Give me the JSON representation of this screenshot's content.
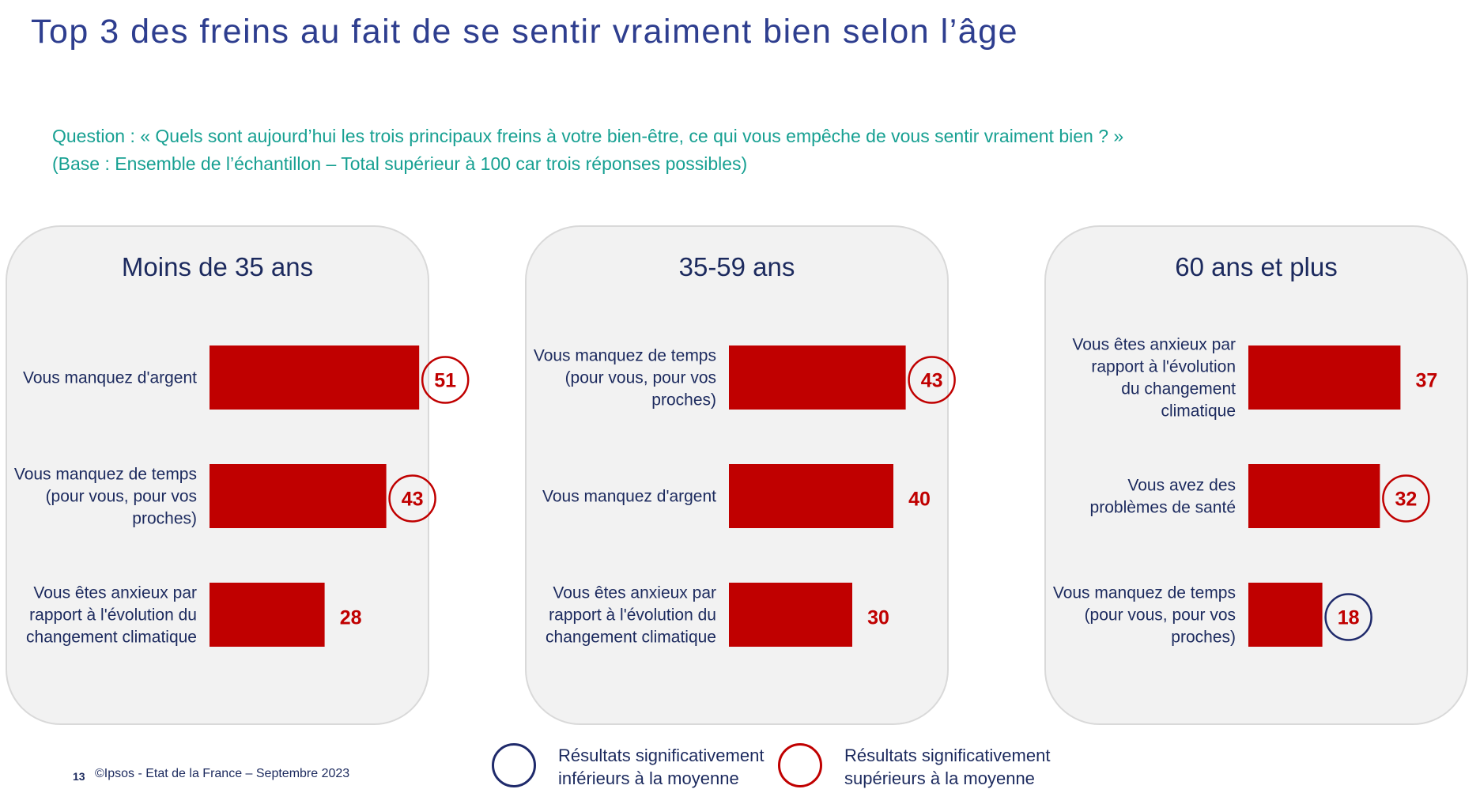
{
  "title": "Top 3 des freins au fait de se sentir vraiment bien selon l’âge",
  "question": {
    "line1": "Question : « Quels sont aujourd’hui les trois principaux freins à votre bien-être, ce qui vous empêche de vous sentir vraiment bien ? »",
    "line2": "(Base : Ensemble de l’échantillon – Total supérieur à 100 car trois réponses possibles)"
  },
  "colors": {
    "bar": "#c00000",
    "higher_circle": "#c00000",
    "lower_circle": "#1f2a6b",
    "title": "#2e3e8f",
    "question": "#17a092"
  },
  "chart_data": [
    {
      "type": "bar",
      "orientation": "horizontal",
      "title": "Moins de 35 ans",
      "xlim": [
        0,
        55
      ],
      "bars": [
        {
          "label": [
            "Vous manquez d'argent"
          ],
          "value": 51,
          "significance": "higher"
        },
        {
          "label": [
            "Vous manquez de temps",
            "(pour vous, pour vos",
            "proches)"
          ],
          "value": 43,
          "significance": "higher"
        },
        {
          "label": [
            "Vous êtes anxieux par",
            "rapport à l'évolution du",
            "changement climatique"
          ],
          "value": 28,
          "significance": "none"
        }
      ]
    },
    {
      "type": "bar",
      "orientation": "horizontal",
      "title": "35-59 ans",
      "xlim": [
        0,
        55
      ],
      "bars": [
        {
          "label": [
            "Vous manquez de temps",
            "(pour vous, pour vos",
            "proches)"
          ],
          "value": 43,
          "significance": "higher"
        },
        {
          "label": [
            "Vous manquez d'argent"
          ],
          "value": 40,
          "significance": "none"
        },
        {
          "label": [
            "Vous êtes anxieux par",
            "rapport à l'évolution du",
            "changement climatique"
          ],
          "value": 30,
          "significance": "none"
        }
      ]
    },
    {
      "type": "bar",
      "orientation": "horizontal",
      "title": "60 ans et plus",
      "xlim": [
        0,
        55
      ],
      "bars": [
        {
          "label": [
            "Vous êtes anxieux par",
            "rapport à l'évolution",
            "du changement",
            "climatique"
          ],
          "value": 37,
          "significance": "none"
        },
        {
          "label": [
            "Vous avez des",
            "problèmes de santé"
          ],
          "value": 32,
          "significance": "higher"
        },
        {
          "label": [
            "Vous manquez de temps",
            "(pour vous, pour vos",
            "proches)"
          ],
          "value": 18,
          "significance": "lower"
        }
      ]
    }
  ],
  "legend": {
    "lower": "Résultats significativement inférieurs à la moyenne",
    "higher": "Résultats significativement supérieurs à la moyenne"
  },
  "footer": {
    "page_number": "13",
    "source": "©Ipsos - Etat de la France – Septembre 2023"
  }
}
